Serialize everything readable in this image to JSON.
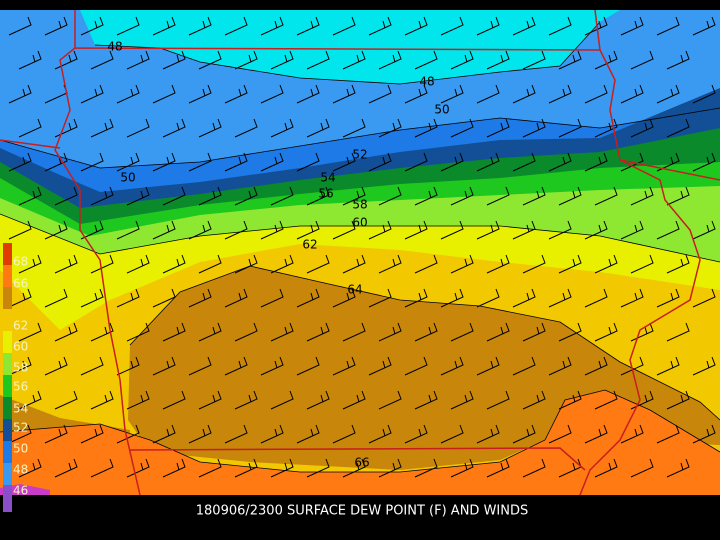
{
  "caption": "180906/2300 SURFACE DEW POINT (F) AND WINDS",
  "contour_labels": [
    48,
    48,
    50,
    50,
    52,
    54,
    56,
    58,
    60,
    62,
    64,
    66
  ],
  "legend_labels": [
    68,
    66,
    62,
    60,
    58,
    56,
    54,
    52,
    50,
    48,
    46
  ]
}
